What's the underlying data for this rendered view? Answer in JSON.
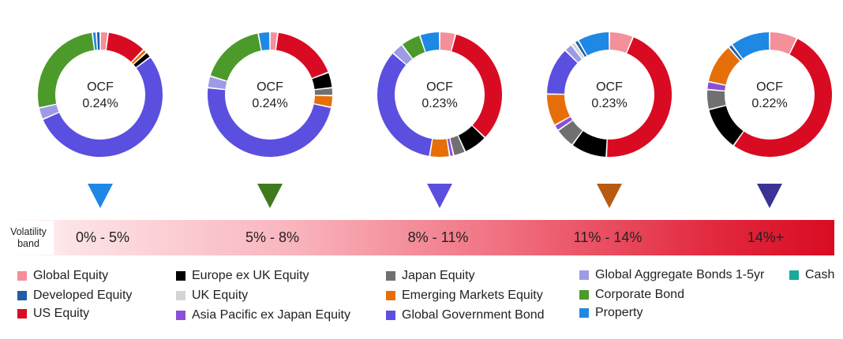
{
  "chart_data": {
    "type": "pie",
    "charts": [
      {
        "center_label": "OCF",
        "ocf": "0.24%",
        "marker_color": "#1e88e5",
        "slices": [
          {
            "category": "Global Equity",
            "value": 2
          },
          {
            "category": "US Equity",
            "value": 10
          },
          {
            "category": "Emerging Markets Equity",
            "value": 1
          },
          {
            "category": "Europe ex UK Equity",
            "value": 1.5
          },
          {
            "category": "Global Government Bond",
            "value": 53
          },
          {
            "category": "Global Aggregate Bonds 1-5yr",
            "value": 3
          },
          {
            "category": "Corporate Bond",
            "value": 26
          },
          {
            "category": "Property",
            "value": 1
          },
          {
            "category": "Developed Equity",
            "value": 1
          }
        ]
      },
      {
        "center_label": "OCF",
        "ocf": "0.24%",
        "marker_color": "#3f7a1f",
        "slices": [
          {
            "category": "Global Equity",
            "value": 2
          },
          {
            "category": "US Equity",
            "value": 17
          },
          {
            "category": "Europe ex UK Equity",
            "value": 4
          },
          {
            "category": "Japan Equity",
            "value": 2
          },
          {
            "category": "Emerging Markets Equity",
            "value": 3
          },
          {
            "category": "Global Government Bond",
            "value": 48
          },
          {
            "category": "Global Aggregate Bonds 1-5yr",
            "value": 3
          },
          {
            "category": "Corporate Bond",
            "value": 17
          },
          {
            "category": "Property",
            "value": 3
          }
        ]
      },
      {
        "center_label": "OCF",
        "ocf": "0.23%",
        "marker_color": "#5b4fe0",
        "slices": [
          {
            "category": "Global Equity",
            "value": 4
          },
          {
            "category": "US Equity",
            "value": 32
          },
          {
            "category": "Europe ex UK Equity",
            "value": 6
          },
          {
            "category": "Japan Equity",
            "value": 3
          },
          {
            "category": "Asia Pacific ex Japan Equity",
            "value": 1
          },
          {
            "category": "Emerging Markets Equity",
            "value": 5
          },
          {
            "category": "Global Government Bond",
            "value": 33
          },
          {
            "category": "Global Aggregate Bonds 1-5yr",
            "value": 3
          },
          {
            "category": "Corporate Bond",
            "value": 5
          },
          {
            "category": "Property",
            "value": 5
          }
        ]
      },
      {
        "center_label": "OCF",
        "ocf": "0.23%",
        "marker_color": "#b85a12",
        "slices": [
          {
            "category": "Global Equity",
            "value": 6
          },
          {
            "category": "US Equity",
            "value": 43
          },
          {
            "category": "Europe ex UK Equity",
            "value": 9
          },
          {
            "category": "Japan Equity",
            "value": 5
          },
          {
            "category": "Asia Pacific ex Japan Equity",
            "value": 1.5
          },
          {
            "category": "Emerging Markets Equity",
            "value": 8
          },
          {
            "category": "Global Government Bond",
            "value": 12
          },
          {
            "category": "Global Aggregate Bonds 1-5yr",
            "value": 2
          },
          {
            "category": "UK Equity",
            "value": 1
          },
          {
            "category": "Developed Equity",
            "value": 1
          },
          {
            "category": "Property",
            "value": 8
          }
        ]
      },
      {
        "center_label": "OCF",
        "ocf": "0.22%",
        "marker_color": "#3b3296",
        "slices": [
          {
            "category": "Global Equity",
            "value": 7
          },
          {
            "category": "US Equity",
            "value": 51
          },
          {
            "category": "Europe ex UK Equity",
            "value": 11
          },
          {
            "category": "Japan Equity",
            "value": 5
          },
          {
            "category": "Asia Pacific ex Japan Equity",
            "value": 2
          },
          {
            "category": "Emerging Markets Equity",
            "value": 10
          },
          {
            "category": "Developed Equity",
            "value": 1
          },
          {
            "category": "Property",
            "value": 10
          }
        ]
      }
    ]
  },
  "volatility": {
    "title": "Volatility band",
    "bands": [
      "0% - 5%",
      "5% - 8%",
      "8% - 11%",
      "11% - 14%",
      "14%+"
    ]
  },
  "legend": [
    {
      "label": "Global Equity",
      "color": "#f4909a"
    },
    {
      "label": "Developed Equity",
      "color": "#1f5fa6"
    },
    {
      "label": "US Equity",
      "color": "#d90b22"
    },
    {
      "label": "Europe ex UK Equity",
      "color": "#000000"
    },
    {
      "label": "UK Equity",
      "color": "#d4d4d4"
    },
    {
      "label": "Asia Pacific ex Japan Equity",
      "color": "#8a4fd6"
    },
    {
      "label": "Japan Equity",
      "color": "#707070"
    },
    {
      "label": "Emerging Markets Equity",
      "color": "#e66f0a"
    },
    {
      "label": "Global Government Bond",
      "color": "#5b4fe0"
    },
    {
      "label": "Global Aggregate Bonds 1-5yr",
      "color": "#9d9be6"
    },
    {
      "label": "Corporate Bond",
      "color": "#4c9a2a"
    },
    {
      "label": "Property",
      "color": "#1e88e5"
    },
    {
      "label": "Cash",
      "color": "#1aa99a"
    }
  ]
}
